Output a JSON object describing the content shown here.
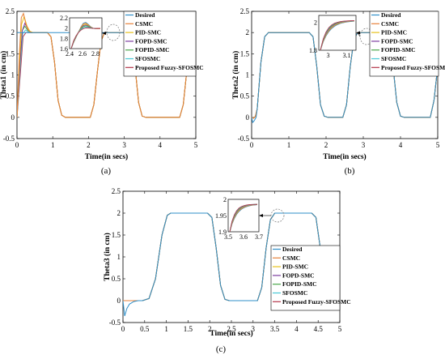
{
  "chart_data": [
    {
      "type": "line",
      "panel": "a",
      "caption": "(a)",
      "xlabel": "Time(in secs)",
      "ylabel": "Theta1 (in cm)",
      "xlim": [
        0,
        5
      ],
      "ylim": [
        -0.5,
        2.5
      ],
      "xticks": [
        "0",
        "1",
        "2",
        "3",
        "4",
        "5"
      ],
      "yticks": [
        "-0.5",
        "0",
        "0.5",
        "1",
        "1.5",
        "2",
        "2.5"
      ],
      "legend": "top-right",
      "grid": false,
      "reference": [
        [
          0,
          0
        ],
        [
          0.08,
          1.4
        ],
        [
          0.18,
          2.0
        ],
        [
          0.85,
          2.0
        ],
        [
          0.95,
          1.9
        ],
        [
          1.05,
          1.3
        ],
        [
          1.15,
          0.4
        ],
        [
          1.25,
          0.05
        ],
        [
          1.35,
          0.0
        ],
        [
          2.05,
          0.0
        ],
        [
          2.15,
          0.3
        ],
        [
          2.25,
          1.1
        ],
        [
          2.35,
          1.8
        ],
        [
          2.45,
          2.0
        ],
        [
          3.1,
          2.0
        ],
        [
          3.2,
          1.85
        ],
        [
          3.3,
          1.2
        ],
        [
          3.4,
          0.35
        ],
        [
          3.5,
          0.03
        ],
        [
          3.6,
          0.0
        ],
        [
          4.55,
          0.0
        ],
        [
          4.65,
          0.3
        ],
        [
          4.75,
          1.1
        ],
        [
          4.85,
          1.8
        ],
        [
          4.95,
          2.0
        ],
        [
          5.0,
          2.0
        ]
      ],
      "series": [
        {
          "name": "Desired",
          "color": "#2f8fc9",
          "values": [
            [
              0,
              2
            ],
            [
              5,
              2
            ]
          ]
        },
        {
          "name": "CSMC",
          "color": "#e8823a",
          "values": [
            [
              0,
              0
            ],
            [
              0.06,
              1.4
            ],
            [
              0.12,
              2.35
            ],
            [
              0.18,
              2.45
            ],
            [
              0.25,
              2.2
            ],
            [
              0.32,
              2.05
            ],
            [
              0.4,
              2.0
            ]
          ]
        },
        {
          "name": "PID-SMC",
          "color": "#e6c21a",
          "values": [
            [
              0,
              0
            ],
            [
              0.07,
              1.3
            ],
            [
              0.13,
              2.2
            ],
            [
              0.2,
              2.38
            ],
            [
              0.28,
              2.15
            ],
            [
              0.36,
              2.03
            ],
            [
              0.45,
              2.0
            ]
          ]
        },
        {
          "name": "FOPD-SMC",
          "color": "#7d3ea0",
          "values": [
            [
              0,
              0
            ],
            [
              0.08,
              1.2
            ],
            [
              0.15,
              2.05
            ],
            [
              0.22,
              2.22
            ],
            [
              0.3,
              2.08
            ],
            [
              0.4,
              2.0
            ]
          ]
        },
        {
          "name": "FOPID-SMC",
          "color": "#4aa84a",
          "values": [
            [
              0,
              0
            ],
            [
              0.08,
              1.25
            ],
            [
              0.15,
              2.05
            ],
            [
              0.22,
              2.15
            ],
            [
              0.3,
              2.05
            ],
            [
              0.4,
              2.0
            ]
          ]
        },
        {
          "name": "SFOSMC",
          "color": "#48c8d6",
          "values": [
            [
              0,
              0
            ],
            [
              0.09,
              1.2
            ],
            [
              0.16,
              1.98
            ],
            [
              0.24,
              2.06
            ],
            [
              0.33,
              2.01
            ],
            [
              0.42,
              2.0
            ]
          ]
        },
        {
          "name": "Proposed Fuzzy-SFOSMC",
          "color": "#b5364a",
          "values": [
            [
              0,
              0
            ],
            [
              0.1,
              1.1
            ],
            [
              0.17,
              1.9
            ],
            [
              0.25,
              2.0
            ]
          ]
        }
      ],
      "inset": {
        "xlim": [
          2.4,
          2.9
        ],
        "ylim": [
          1.6,
          2.2
        ],
        "xticks": [
          "2.4",
          "2.6",
          "2.8"
        ],
        "yticks": [
          "1.6",
          "1.8",
          "2",
          "2.2"
        ]
      }
    },
    {
      "type": "line",
      "panel": "b",
      "caption": "(b)",
      "xlabel": "Time(in secs)",
      "ylabel": "Theta2 (in cm)",
      "xlim": [
        0,
        5
      ],
      "ylim": [
        -0.5,
        2.5
      ],
      "xticks": [
        "0",
        "1",
        "2",
        "3",
        "4",
        "5"
      ],
      "yticks": [
        "-0.5",
        "0",
        "0.5",
        "1",
        "1.5",
        "2",
        "2.5"
      ],
      "legend": "top-right",
      "grid": false,
      "reference": [
        [
          0,
          0
        ],
        [
          0.05,
          -0.02
        ],
        [
          0.1,
          0.02
        ],
        [
          0.15,
          0.2
        ],
        [
          0.25,
          1.3
        ],
        [
          0.35,
          1.9
        ],
        [
          0.45,
          2.0
        ],
        [
          1.55,
          2.0
        ],
        [
          1.65,
          1.9
        ],
        [
          1.75,
          1.2
        ],
        [
          1.85,
          0.3
        ],
        [
          1.95,
          0.03
        ],
        [
          2.05,
          0.0
        ],
        [
          2.45,
          0.0
        ],
        [
          2.55,
          0.3
        ],
        [
          2.65,
          1.2
        ],
        [
          2.75,
          1.85
        ],
        [
          2.85,
          2.0
        ],
        [
          3.6,
          2.0
        ],
        [
          3.7,
          1.9
        ],
        [
          3.8,
          1.2
        ],
        [
          3.9,
          0.35
        ],
        [
          4.0,
          0.03
        ],
        [
          4.1,
          0.0
        ],
        [
          4.8,
          0.0
        ],
        [
          4.9,
          0.4
        ],
        [
          5.0,
          1.2
        ]
      ],
      "series": [
        {
          "name": "Desired",
          "color": "#2f8fc9",
          "values": [
            [
              0,
              0
            ],
            [
              0.03,
              -0.12
            ],
            [
              0.07,
              -0.08
            ],
            [
              0.12,
              0.0
            ]
          ]
        },
        {
          "name": "CSMC",
          "color": "#e8823a",
          "values": []
        },
        {
          "name": "PID-SMC",
          "color": "#e6c21a",
          "values": []
        },
        {
          "name": "FOPD-SMC",
          "color": "#7d3ea0",
          "values": []
        },
        {
          "name": "FOPID-SMC",
          "color": "#4aa84a",
          "values": []
        },
        {
          "name": "SFOSMC",
          "color": "#48c8d6",
          "values": []
        },
        {
          "name": "Proposed Fuzzy-SFOSMC",
          "color": "#b5364a",
          "values": []
        }
      ],
      "inset": {
        "xlim": [
          2.95,
          3.15
        ],
        "ylim": [
          1.8,
          2.05
        ],
        "xticks": [
          "3",
          "3.1"
        ],
        "yticks": [
          "1.8",
          "2"
        ]
      }
    },
    {
      "type": "line",
      "panel": "c",
      "caption": "(c)",
      "xlabel": "Time(in secs)",
      "ylabel": "Theta3 (in cm)",
      "xlim": [
        0,
        5
      ],
      "ylim": [
        -0.5,
        2.5
      ],
      "xticks": [
        "0",
        "0.5",
        "1",
        "1.5",
        "2",
        "2.5",
        "3",
        "3.5",
        "4",
        "4.5",
        "5"
      ],
      "yticks": [
        "-0.5",
        "0",
        "0.5",
        "1",
        "1.5",
        "2",
        "2.5"
      ],
      "legend": "bottom-right",
      "grid": false,
      "reference": [
        [
          0,
          0
        ],
        [
          0.45,
          0.0
        ],
        [
          0.6,
          0.05
        ],
        [
          0.75,
          0.5
        ],
        [
          0.9,
          1.5
        ],
        [
          1.02,
          1.95
        ],
        [
          1.1,
          2.0
        ],
        [
          1.95,
          2.0
        ],
        [
          2.05,
          1.9
        ],
        [
          2.15,
          1.2
        ],
        [
          2.25,
          0.35
        ],
        [
          2.35,
          0.03
        ],
        [
          2.45,
          0.0
        ],
        [
          3.1,
          0.0
        ],
        [
          3.2,
          0.3
        ],
        [
          3.3,
          1.2
        ],
        [
          3.4,
          1.85
        ],
        [
          3.5,
          2.0
        ],
        [
          4.35,
          2.0
        ],
        [
          4.45,
          1.9
        ],
        [
          4.55,
          1.2
        ],
        [
          4.65,
          0.4
        ],
        [
          4.75,
          0.05
        ],
        [
          4.8,
          0.0
        ]
      ],
      "series": [
        {
          "name": "Desired",
          "color": "#2f8fc9",
          "values": [
            [
              0,
              0
            ],
            [
              0.04,
              -0.35
            ],
            [
              0.09,
              -0.18
            ],
            [
              0.15,
              -0.08
            ],
            [
              0.25,
              -0.02
            ],
            [
              0.35,
              0.0
            ]
          ]
        },
        {
          "name": "CSMC",
          "color": "#e8823a",
          "values": []
        },
        {
          "name": "PID-SMC",
          "color": "#e6c21a",
          "values": []
        },
        {
          "name": "FOPD-SMC",
          "color": "#7d3ea0",
          "values": []
        },
        {
          "name": "FOPID-SMC",
          "color": "#4aa84a",
          "values": []
        },
        {
          "name": "SFOSMC",
          "color": "#48c8d6",
          "values": []
        },
        {
          "name": "Proposed Fuzzy-SFOSMC",
          "color": "#b5364a",
          "values": []
        }
      ],
      "inset": {
        "xlim": [
          3.5,
          3.7
        ],
        "ylim": [
          1.9,
          2.0
        ],
        "xticks": [
          "3.5",
          "3.6",
          "3.7"
        ],
        "yticks": [
          "1.9",
          "1.95",
          "2"
        ]
      }
    }
  ]
}
